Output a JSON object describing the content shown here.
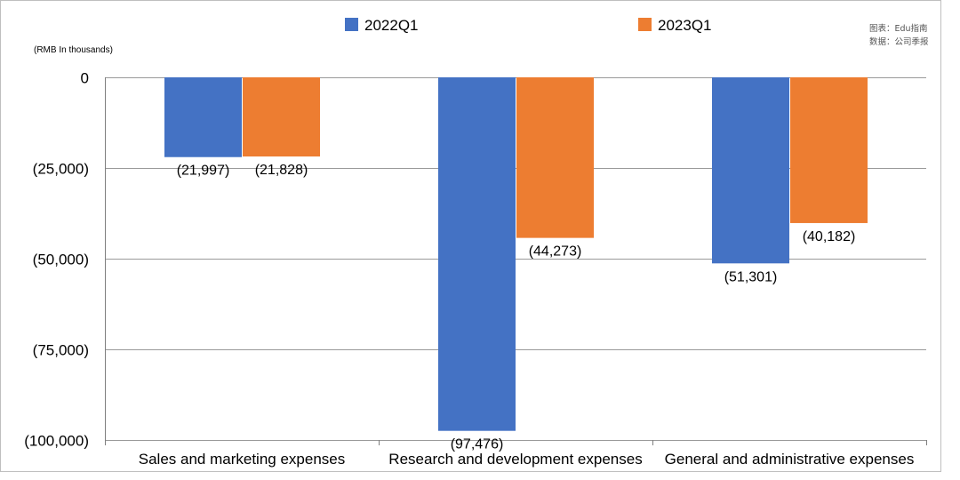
{
  "chart_data": {
    "type": "bar",
    "unit_label": "(RMB In thousands)",
    "categories": [
      "Sales and marketing expenses",
      "Research and development expenses",
      "General and administrative expenses"
    ],
    "series": [
      {
        "name": "2022Q1",
        "color": "#4472c4",
        "values": [
          -21997,
          -97476,
          -51301
        ],
        "labels": [
          "(21,997)",
          "(97,476)",
          "(51,301)"
        ]
      },
      {
        "name": "2023Q1",
        "color": "#ed7d31",
        "values": [
          -21828,
          -44273,
          -40182
        ],
        "labels": [
          "(21,828)",
          "(44,273)",
          "(40,182)"
        ]
      }
    ],
    "ylim": [
      -100000,
      0
    ],
    "yticks": [
      0,
      -25000,
      -50000,
      -75000,
      -100000
    ],
    "ytick_labels": [
      "0",
      "(25,000)",
      "(50,000)",
      "(75,000)",
      "(100,000)"
    ],
    "grid": true,
    "legend": "top-center"
  },
  "source_note": {
    "line1": "图表：Edu指南",
    "line2": "数据：公司季报"
  }
}
